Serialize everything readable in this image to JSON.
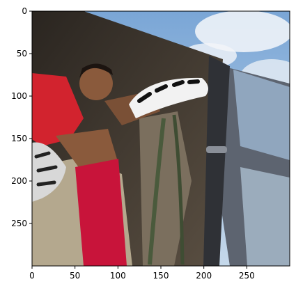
{
  "chart_data": {
    "type": "image",
    "title": "",
    "xlabel": "",
    "ylabel": "",
    "xlim": [
      0,
      300
    ],
    "ylim": [
      300,
      0
    ],
    "x_ticks": [
      0,
      50,
      100,
      150,
      200,
      250
    ],
    "y_ticks": [
      0,
      50,
      100,
      150,
      200,
      250
    ],
    "grid": false,
    "legend": "none"
  },
  "photo": {
    "subject": "boy in red shirt and red soccer socks climbing out of a van",
    "colors": {
      "sky": "#8fb5dc",
      "cloud": "#eef3f8",
      "shirt": "#d2232e",
      "sock": "#c8143a",
      "interior": "#3b342c",
      "seat": "#b4a88e",
      "skin": "#8a5a3c",
      "van_body": "#5d6470"
    },
    "icons": [
      "soccer-cleat-icon"
    ]
  }
}
